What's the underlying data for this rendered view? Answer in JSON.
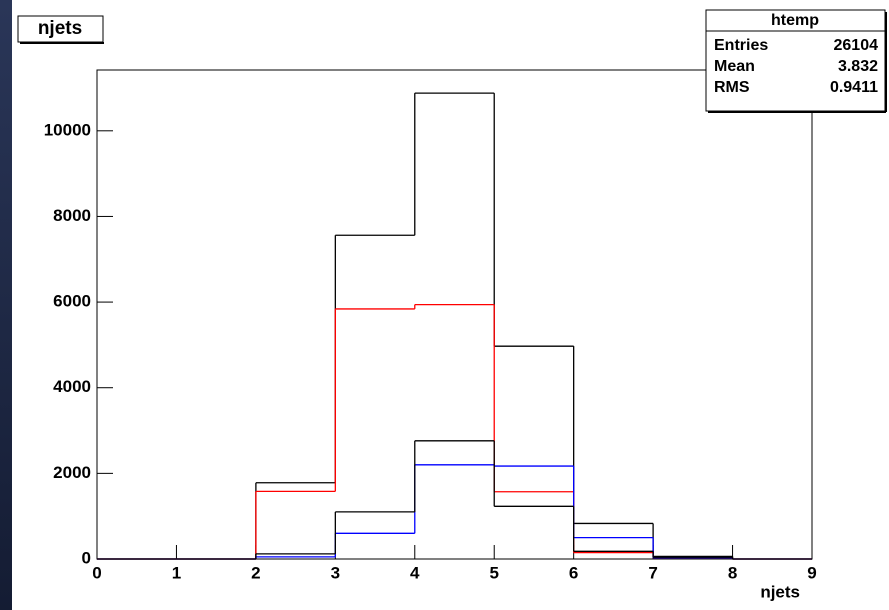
{
  "chart_data": {
    "type": "histogram",
    "title": "njets",
    "x_label": "njets",
    "bins": [
      0,
      1,
      2,
      3,
      4,
      5,
      6,
      7,
      8,
      9
    ],
    "series": [
      {
        "color": "#000000",
        "values": [
          0,
          0,
          1780,
          7560,
          10880,
          4970,
          830,
          60,
          0
        ]
      },
      {
        "color": "#ff0000",
        "values": [
          0,
          0,
          1580,
          5840,
          5940,
          1570,
          150,
          30,
          0
        ]
      },
      {
        "color": "#0000ff",
        "values": [
          0,
          0,
          50,
          600,
          2200,
          2170,
          500,
          30,
          0
        ]
      },
      {
        "color": "#000000",
        "values": [
          0,
          0,
          120,
          1100,
          2760,
          1230,
          180,
          40,
          0
        ]
      }
    ],
    "xlim": [
      0,
      9
    ],
    "xticks": [
      0,
      1,
      2,
      3,
      4,
      5,
      6,
      7,
      8,
      9
    ],
    "ylim": [
      0,
      11420
    ],
    "yticks": [
      0,
      2000,
      4000,
      6000,
      8000,
      10000
    ],
    "stats": {
      "title": "htemp",
      "rows": [
        [
          "Entries",
          "26104"
        ],
        [
          "Mean",
          "3.832"
        ],
        [
          "RMS",
          "0.9411"
        ]
      ]
    }
  }
}
